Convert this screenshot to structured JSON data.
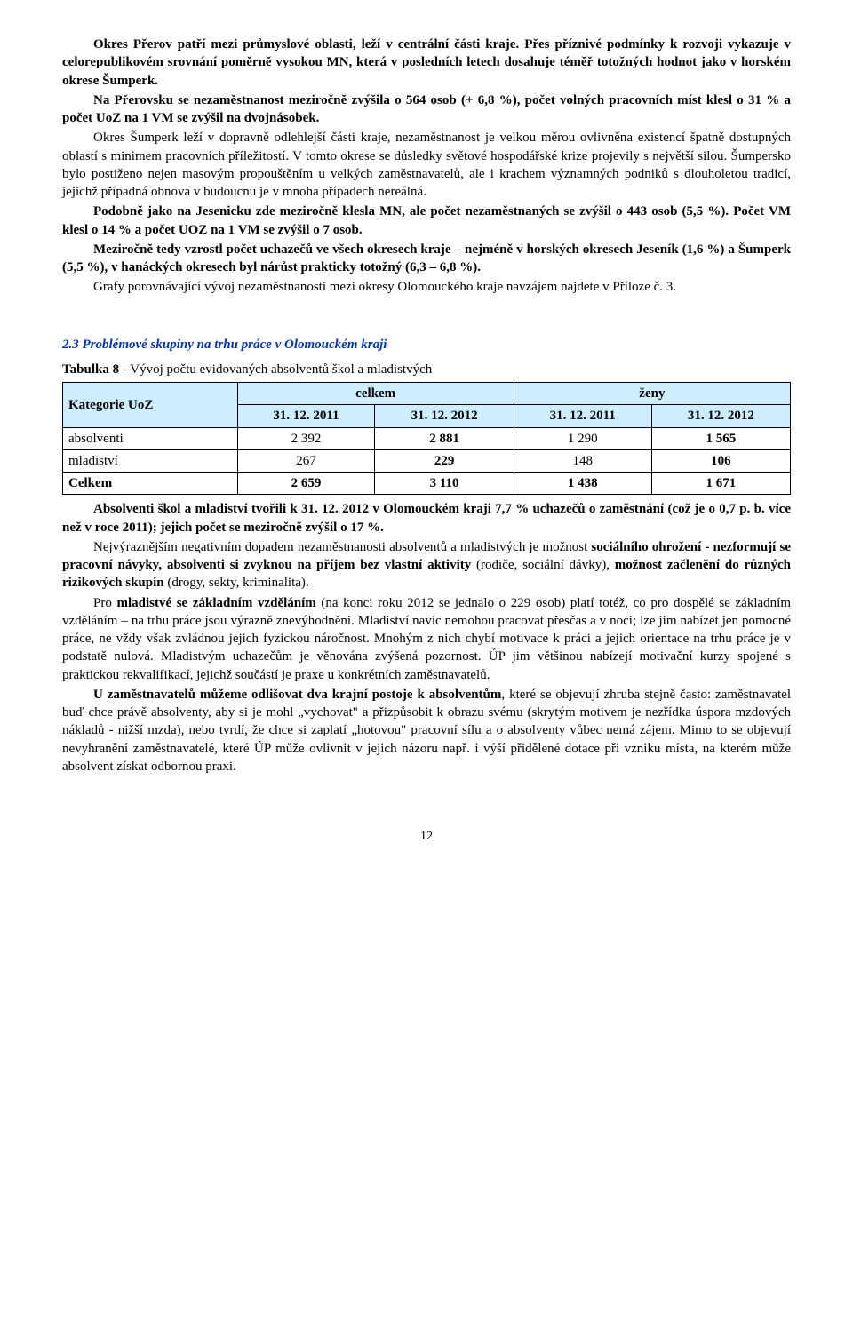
{
  "paragraphs": {
    "p1": "Okres Přerov patří mezi průmyslové oblasti, leží v centrální části kraje. Přes příznivé podmínky k rozvoji vykazuje v celorepublikovém srovnání poměrně vysokou MN, která v posledních letech dosahuje téměř totožných hodnot jako v horském okrese Šumperk.",
    "p2": "Na Přerovsku se nezaměstnanost meziročně zvýšila o 564 osob (+ 6,8 %), počet volných pracovních míst klesl o 31 % a počet UoZ na 1 VM se zvýšil na dvojnásobek.",
    "p3": "Okres Šumperk leží v dopravně odlehlejší části kraje, nezaměstnanost je velkou měrou ovlivněna existencí špatně dostupných oblastí s minimem pracovních příležitostí. V tomto okrese se důsledky světové hospodářské krize projevily s největší silou. Šumpersko bylo postiženo nejen masovým propouštěním u velkých zaměstnavatelů, ale i krachem významných podniků s dlouholetou tradicí, jejichž případná obnova v budoucnu je v mnoha případech nereálná.",
    "p4": "Podobně jako na Jesenicku zde meziročně klesla MN, ale počet nezaměstnaných se zvýšil o 443 osob (5,5 %). Počet VM klesl o 14 % a počet UOZ na 1 VM se zvýšil o 7 osob.",
    "p5": "Meziročně tedy vzrostl počet uchazečů ve všech okresech kraje – nejméně v horských okresech Jeseník (1,6 %) a Šumperk (5,5 %), v hanáckých okresech byl nárůst prakticky totožný (6,3 – 6,8 %).",
    "p6": "Grafy porovnávající vývoj nezaměstnanosti mezi okresy Olomouckého kraje navzájem najdete v Příloze č. 3.",
    "p7a": "Absolventi škol a mladiství tvořili k 31. 12. 2012 v Olomouckém kraji 7,7 % uchazečů o zaměstnání (což je o 0,7 p. b. více než v roce 2011); jejich počet se meziročně zvýšil o 17 %.",
    "p8_pre": "Nejvýraznějším negativním dopadem nezaměstnanosti absolventů a mladistvých je možnost ",
    "p8_b1": "sociálního ohrožení  -  nezformují se pracovní návyky, absolventi si zvyknou na příjem bez vlastní aktivity",
    "p8_mid": " (rodiče, sociální dávky), ",
    "p8_b2": "možnost začlenění do různých rizikových skupin",
    "p8_post": " (drogy, sekty, kriminalita).",
    "p9_pre": "Pro ",
    "p9_b": "mladistvé se základním vzděláním",
    "p9_post": " (na konci roku 2012 se jednalo o 229 osob)  platí totéž, co pro dospělé se základním vzděláním – na trhu práce jsou výrazně znevýhodněni. Mladiství navíc nemohou pracovat přesčas a v noci; lze jim nabízet jen pomocné práce, ne vždy však zvládnou jejich fyzickou náročnost. Mnohým z nich chybí motivace k práci a jejich orientace na trhu práce je v podstatě nulová. Mladistvým uchazečům je věnována zvýšená pozornost. ÚP jim většinou nabízejí motivační kurzy spojené s praktickou rekvalifikací, jejichž součástí je praxe u konkrétních zaměstnavatelů.",
    "p10_pre": "U zaměstnavatelů můžeme odlišovat dva krajní postoje k absolventům",
    "p10_post": ", které se objevují zhruba stejně často: zaměstnavatel buď chce právě absolventy, aby si je mohl „vychovat\" a přizpůsobit k obrazu svému (skrytým motivem je nezřídka úspora mzdových nákladů - nižší mzda), nebo tvrdí, že chce si zaplatí „hotovou\" pracovní sílu a o absolventy vůbec nemá zájem. Mimo to se objevují nevyhranění zaměstnavatelé, které ÚP může ovlivnit v jejich názoru např. i výší přidělené dotace při vzniku místa, na kterém může absolvent získat odbornou praxi."
  },
  "section": {
    "title": "2.3 Problémové skupiny na trhu práce v Olomouckém kraji"
  },
  "table": {
    "caption_prefix": "Tabulka 8",
    "caption_rest": " - Vývoj počtu evidovaných absolventů škol a mladistvých",
    "row_header": "Kategorie UoZ",
    "group1": "celkem",
    "group2": "ženy",
    "col1": "31. 12. 2011",
    "col2": "31. 12. 2012",
    "col3": "31. 12. 2011",
    "col4": "31. 12. 2012",
    "rows": [
      {
        "label": "absolventi",
        "c1": "2 392",
        "c2": "2 881",
        "c3": "1 290",
        "c4": "1 565",
        "total": false
      },
      {
        "label": "mladiství",
        "c1": "267",
        "c2": "229",
        "c3": "148",
        "c4": "106",
        "total": false
      },
      {
        "label": "Celkem",
        "c1": "2 659",
        "c2": "3 110",
        "c3": "1 438",
        "c4": "1 671",
        "total": true
      }
    ]
  },
  "page_number": "12"
}
